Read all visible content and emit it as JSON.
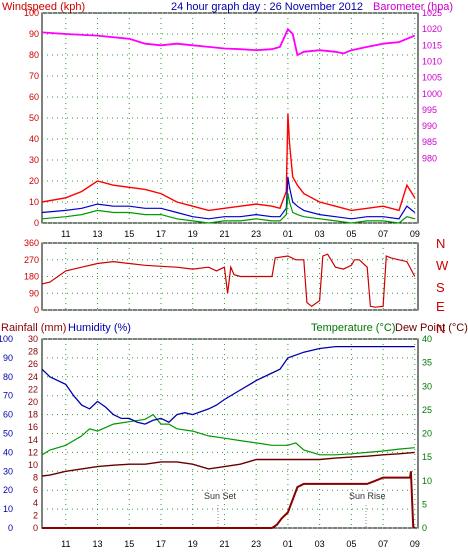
{
  "header": {
    "left_label": "Windspeed (kph)",
    "title": "24 hour graph day : 26 November 2012",
    "right_label": "Barometer (hpa)"
  },
  "colors": {
    "wind_gust": "#ff0000",
    "wind_avg": "#0000cc",
    "wind_low": "#009900",
    "barometer": "#ff00ff",
    "direction": "#cc0000",
    "humidity": "#0000aa",
    "temperature": "#009900",
    "dewpoint": "#660000",
    "rainfall": "#880000",
    "grid": "#339933",
    "axis": "#000000"
  },
  "time_ticks": [
    "11",
    "13",
    "15",
    "17",
    "19",
    "21",
    "23",
    "01",
    "03",
    "05",
    "07",
    "09"
  ],
  "chart_data": [
    {
      "type": "line",
      "panel": "wind_barometer",
      "y_left": {
        "label": "Windspeed (kph)",
        "lim": [
          0,
          100
        ],
        "ticks": [
          "0",
          "10",
          "20",
          "30",
          "40",
          "50",
          "60",
          "70",
          "80",
          "90",
          "100"
        ]
      },
      "y_right": {
        "label": "Barometer (hpa)",
        "lim": [
          960,
          1025
        ],
        "ticks": [
          "980",
          "985",
          "990",
          "995",
          "1000",
          "1005",
          "1010",
          "1015",
          "1020",
          "1025"
        ]
      },
      "series": [
        {
          "name": "Barometer",
          "axis": "right",
          "x": [
            9.5,
            11,
            13,
            15,
            16,
            17,
            18,
            19,
            20,
            21,
            22,
            23,
            24,
            24.5,
            25,
            25.3,
            25.6,
            26,
            27,
            28,
            28.5,
            29,
            30,
            31,
            32,
            33
          ],
          "y": [
            1019,
            1018.5,
            1018,
            1017,
            1015.5,
            1015,
            1015.5,
            1015,
            1014.5,
            1014,
            1013.8,
            1013.5,
            1013.8,
            1014.5,
            1020,
            1018.5,
            1012,
            1013,
            1013.5,
            1013,
            1012.5,
            1013.5,
            1014.5,
            1015.5,
            1016,
            1018
          ]
        },
        {
          "name": "Gust",
          "axis": "left",
          "x": [
            9.5,
            11,
            12,
            13,
            14,
            15,
            16,
            17,
            18,
            19,
            20,
            21,
            22,
            23,
            24,
            24.5,
            24.9,
            25,
            25.1,
            25.3,
            25.6,
            26,
            27,
            28,
            29,
            30,
            31,
            32,
            32.5,
            33
          ],
          "y": [
            10,
            12,
            15,
            20,
            18,
            17,
            16,
            14,
            10,
            8,
            6,
            7,
            8,
            9,
            8,
            7,
            15,
            52,
            38,
            22,
            18,
            14,
            10,
            8,
            6,
            7,
            8,
            6,
            18,
            12
          ]
        },
        {
          "name": "Average",
          "axis": "left",
          "x": [
            9.5,
            11,
            12,
            13,
            14,
            15,
            16,
            17,
            18,
            19,
            20,
            21,
            22,
            23,
            24,
            24.5,
            24.9,
            25,
            25.1,
            25.3,
            25.6,
            26,
            27,
            28,
            29,
            30,
            31,
            32,
            32.5,
            33
          ],
          "y": [
            5,
            6,
            7,
            9,
            8,
            8,
            7,
            7,
            5,
            3,
            2,
            3,
            3,
            4,
            3,
            3,
            7,
            22,
            17,
            10,
            8,
            6,
            4,
            3,
            2,
            3,
            3,
            2,
            8,
            5
          ]
        },
        {
          "name": "Low",
          "axis": "left",
          "x": [
            9.5,
            11,
            12,
            13,
            14,
            15,
            16,
            17,
            18,
            19,
            20,
            21,
            22,
            23,
            24,
            24.5,
            24.9,
            25,
            25.1,
            25.3,
            25.6,
            26,
            27,
            28,
            29,
            30,
            31,
            32,
            32.5,
            33
          ],
          "y": [
            2,
            3,
            4,
            6,
            5,
            5,
            4,
            4,
            2,
            1,
            0,
            1,
            1,
            2,
            1,
            1,
            4,
            14,
            10,
            5,
            4,
            3,
            2,
            1,
            0,
            1,
            1,
            0,
            3,
            2
          ]
        }
      ]
    },
    {
      "type": "line",
      "panel": "wind_direction",
      "y_left": {
        "lim": [
          0,
          360
        ],
        "ticks": [
          "0",
          "90",
          "180",
          "270",
          "360"
        ]
      },
      "y_right": {
        "ticks": [
          "N",
          "W",
          "S",
          "E",
          "N"
        ]
      },
      "series": [
        {
          "name": "Direction",
          "x": [
            9.5,
            10,
            10.5,
            11,
            12,
            13,
            14,
            15,
            16,
            17,
            18,
            19,
            20,
            20.5,
            21,
            21.2,
            21.4,
            21.6,
            22,
            23,
            24,
            24.2,
            25,
            25.5,
            26,
            26.2,
            26.5,
            27,
            27.2,
            27.5,
            28,
            28.5,
            29,
            29.2,
            29.5,
            30,
            30.2,
            30.5,
            31,
            31.2,
            31.5,
            32,
            32.5,
            33
          ],
          "y": [
            140,
            150,
            180,
            210,
            230,
            250,
            260,
            250,
            240,
            235,
            230,
            220,
            230,
            210,
            230,
            90,
            230,
            190,
            180,
            180,
            180,
            280,
            290,
            270,
            270,
            40,
            20,
            50,
            290,
            300,
            230,
            220,
            240,
            270,
            270,
            230,
            20,
            15,
            20,
            290,
            280,
            270,
            260,
            180
          ]
        }
      ]
    },
    {
      "type": "line",
      "panel": "rain_humidity_temp",
      "left_labels": {
        "rainfall": "Rainfall (mm)",
        "humidity": "Humidity (%)"
      },
      "right_labels": {
        "temperature": "Temperature (°C)",
        "dewpoint": "Dew Point (°C)"
      },
      "y_humidity": {
        "lim": [
          0,
          100
        ],
        "ticks": [
          "0",
          "10",
          "20",
          "30",
          "40",
          "50",
          "60",
          "70",
          "80",
          "90",
          "100"
        ]
      },
      "y_rainfall": {
        "lim": [
          0,
          30
        ],
        "ticks": [
          "0",
          "2",
          "4",
          "6",
          "8",
          "10",
          "12",
          "14",
          "16",
          "18",
          "20",
          "22",
          "24",
          "26",
          "28",
          "30"
        ]
      },
      "y_temperature": {
        "lim": [
          0,
          40
        ],
        "ticks": [
          "0",
          "5",
          "10",
          "15",
          "20",
          "25",
          "30",
          "35",
          "40"
        ]
      },
      "annotations": [
        {
          "text": "Sun Set",
          "x": 20.4
        },
        {
          "text": "Sun Rise",
          "x": 30.3
        }
      ],
      "series": [
        {
          "name": "Humidity",
          "axis": "humidity",
          "x": [
            9.5,
            10,
            11,
            11.5,
            12,
            12.5,
            13,
            13.5,
            14,
            14.5,
            15,
            15.5,
            16,
            16.5,
            17,
            17.5,
            18,
            18.5,
            19,
            20,
            20.5,
            21,
            22,
            23,
            24,
            24.5,
            25,
            26,
            27,
            28,
            29,
            30,
            31,
            32,
            33
          ],
          "y": [
            84,
            80,
            76,
            70,
            65,
            63,
            67,
            64,
            60,
            58,
            58,
            56,
            55,
            57,
            58,
            56,
            60,
            61,
            60,
            63,
            65,
            68,
            73,
            78,
            82,
            84,
            90,
            93,
            95,
            96,
            96,
            96,
            96,
            96,
            96
          ]
        },
        {
          "name": "Temperature",
          "axis": "temperature",
          "x": [
            9.5,
            10,
            11,
            12,
            12.5,
            13,
            14,
            15,
            16,
            16.5,
            17,
            17.5,
            18,
            19,
            20,
            21,
            22,
            23,
            24,
            25,
            25.5,
            26,
            27,
            28,
            29,
            30,
            31,
            32,
            33
          ],
          "y": [
            15.5,
            16.5,
            17.5,
            19.5,
            21,
            20.5,
            22,
            22.5,
            23,
            24,
            22,
            22,
            21,
            20.5,
            19.5,
            19,
            18.5,
            18,
            17.5,
            17.5,
            18,
            16.5,
            15.5,
            15.5,
            15.7,
            16,
            16.3,
            16.7,
            17
          ]
        },
        {
          "name": "Dew Point",
          "axis": "temperature",
          "x": [
            9.5,
            10,
            11,
            12,
            13,
            14,
            15,
            16,
            17,
            18,
            19,
            20,
            21,
            22,
            23,
            24,
            25,
            26,
            27,
            28,
            29,
            30,
            31,
            32,
            33
          ],
          "y": [
            11,
            11.2,
            12,
            12.5,
            13,
            13.3,
            13.5,
            13.5,
            14,
            14,
            13.5,
            12.5,
            13,
            13.5,
            14.5,
            14.5,
            14.5,
            14.5,
            14.5,
            14.8,
            15,
            15.2,
            15.5,
            15.7,
            16
          ]
        },
        {
          "name": "Rainfall",
          "axis": "rainfall",
          "x": [
            9.5,
            24,
            24.3,
            24.6,
            25,
            25.3,
            25.6,
            26,
            27,
            28,
            29,
            30,
            30.5,
            31,
            32,
            32.7,
            32.75,
            32.9,
            33
          ],
          "y": [
            0,
            0,
            0.5,
            1.5,
            2.5,
            4.5,
            6.5,
            7,
            7,
            7,
            7,
            7,
            7.5,
            8,
            8,
            8,
            9,
            0.2,
            0
          ]
        }
      ]
    }
  ]
}
